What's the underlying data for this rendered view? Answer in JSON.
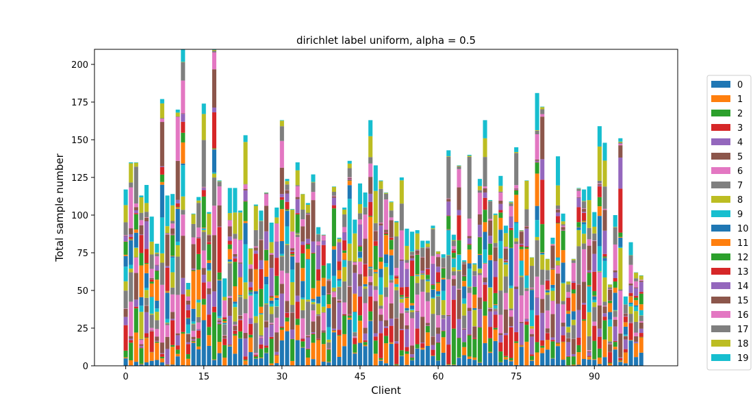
{
  "chart_data": {
    "type": "bar",
    "stacked": true,
    "title": "dirichlet label uniform, alpha = 0.5",
    "xlabel": "Client",
    "ylabel": "Total sample number",
    "xlim": [
      -6,
      106
    ],
    "ylim": [
      0,
      210
    ],
    "xticks": [
      0,
      15,
      30,
      45,
      60,
      75,
      90
    ],
    "yticks": [
      0,
      25,
      50,
      75,
      100,
      125,
      150,
      175,
      200
    ],
    "grid": false,
    "legend_position": "right-outside",
    "legend_labels": [
      "0",
      "1",
      "2",
      "3",
      "4",
      "5",
      "6",
      "7",
      "8",
      "9",
      "10",
      "11",
      "12",
      "13",
      "14",
      "15",
      "16",
      "17",
      "18",
      "19"
    ],
    "colors": [
      "#1f77b4",
      "#ff7f0e",
      "#2ca02c",
      "#d62728",
      "#9467bd",
      "#8c564b",
      "#e377c2",
      "#7f7f7f",
      "#bcbd22",
      "#17becf"
    ],
    "x": [
      0,
      1,
      2,
      3,
      4,
      5,
      6,
      7,
      8,
      9,
      10,
      11,
      12,
      13,
      14,
      15,
      16,
      17,
      18,
      19,
      20,
      21,
      22,
      23,
      24,
      25,
      26,
      27,
      28,
      29,
      30,
      31,
      32,
      33,
      34,
      35,
      36,
      37,
      38,
      39,
      40,
      41,
      42,
      43,
      44,
      45,
      46,
      47,
      48,
      49,
      50,
      51,
      52,
      53,
      54,
      55,
      56,
      57,
      58,
      59,
      60,
      61,
      62,
      63,
      64,
      65,
      66,
      67,
      68,
      69,
      70,
      71,
      72,
      73,
      74,
      75,
      76,
      77,
      78,
      79,
      80,
      81,
      82,
      83,
      84,
      85,
      86,
      87,
      88,
      89,
      90,
      91,
      92,
      93,
      94,
      95,
      96,
      97,
      98,
      99
    ],
    "totals": [
      117,
      135,
      135,
      113,
      120,
      99,
      81,
      177,
      113,
      114,
      170,
      210,
      55,
      101,
      112,
      174,
      102,
      210,
      123,
      58,
      118,
      118,
      103,
      153,
      78,
      107,
      103,
      115,
      95,
      105,
      163,
      124,
      104,
      135,
      114,
      108,
      127,
      92,
      87,
      68,
      119,
      85,
      105,
      136,
      97,
      121,
      115,
      163,
      133,
      123,
      115,
      109,
      96,
      125,
      91,
      89,
      90,
      83,
      83,
      93,
      76,
      74,
      143,
      87,
      133,
      70,
      140,
      68,
      124,
      163,
      110,
      101,
      126,
      93,
      109,
      145,
      90,
      123,
      72,
      181,
      172,
      71,
      85,
      139,
      101,
      56,
      71,
      118,
      117,
      119,
      102,
      159,
      148,
      54,
      100,
      151,
      46,
      82,
      62,
      60
    ]
  }
}
